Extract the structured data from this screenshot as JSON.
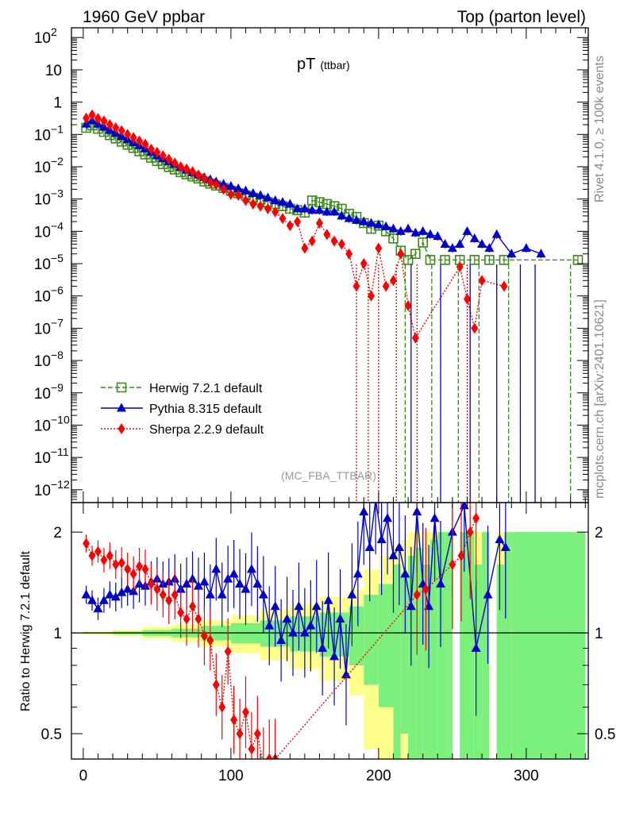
{
  "header": {
    "left": "1960 GeV ppbar",
    "right": "Top (parton level)"
  },
  "side_labels": {
    "rivet": "Rivet 4.1.0, ≥ 100k events",
    "mcplots": "mcplots.cern.ch [arXiv:2401.10621]"
  },
  "chart_data": [
    {
      "type": "line",
      "panel": "main",
      "title": "pT",
      "title_sub": "(ttbar)",
      "analysis_label": "(MC_FBA_TTBAR)",
      "yscale": "log",
      "xlim": [
        -8,
        342
      ],
      "ylim": [
        4e-13,
        200
      ],
      "xticks": [
        0,
        100,
        200,
        300
      ],
      "yticks": [
        {
          "v": 1e-12,
          "base": "10",
          "exp": "−12"
        },
        {
          "v": 1e-11,
          "base": "10",
          "exp": "−11"
        },
        {
          "v": 1e-10,
          "base": "10",
          "exp": "−10"
        },
        {
          "v": 1e-09,
          "base": "10",
          "exp": "−9"
        },
        {
          "v": 1e-08,
          "base": "10",
          "exp": "−8"
        },
        {
          "v": 1e-07,
          "base": "10",
          "exp": "−7"
        },
        {
          "v": 1e-06,
          "base": "10",
          "exp": "−6"
        },
        {
          "v": 1e-05,
          "base": "10",
          "exp": "−5"
        },
        {
          "v": 0.0001,
          "base": "10",
          "exp": "−4"
        },
        {
          "v": 0.001,
          "base": "10",
          "exp": "−3"
        },
        {
          "v": 0.01,
          "base": "10",
          "exp": "−2"
        },
        {
          "v": 0.1,
          "base": "10",
          "exp": "−1"
        },
        {
          "v": 1,
          "base": "1",
          "exp": ""
        },
        {
          "v": 10,
          "base": "10",
          "exp": ""
        },
        {
          "v": 100,
          "base": "10",
          "exp": "2"
        }
      ],
      "series": [
        {
          "name": "Herwig 7.2.1 default",
          "color": "#3a8a1a",
          "marker": "open-square",
          "dash": "6,3",
          "x": [
            2,
            6,
            10,
            14,
            18,
            22,
            26,
            30,
            34,
            38,
            42,
            46,
            50,
            54,
            58,
            62,
            66,
            70,
            74,
            78,
            82,
            86,
            90,
            95,
            100,
            105,
            110,
            115,
            120,
            125,
            130,
            135,
            140,
            145,
            150,
            155,
            160,
            165,
            170,
            175,
            180,
            185,
            190,
            195,
            200,
            205,
            210,
            215,
            220,
            225,
            230,
            235,
            245,
            255,
            265,
            275,
            285,
            335
          ],
          "y": [
            0.16,
            0.19,
            0.15,
            0.12,
            0.095,
            0.075,
            0.06,
            0.048,
            0.038,
            0.03,
            0.024,
            0.019,
            0.015,
            0.012,
            0.0098,
            0.0082,
            0.0068,
            0.0058,
            0.005,
            0.0043,
            0.0035,
            0.003,
            0.0026,
            0.0022,
            0.0018,
            0.0015,
            0.0013,
            0.0011,
            0.00095,
            0.0008,
            0.0007,
            0.0006,
            0.0005,
            0.00045,
            0.00038,
            0.0009,
            0.0008,
            0.0007,
            0.0006,
            0.0005,
            0.00035,
            0.00028,
            0.00018,
            0.00012,
            0.00015,
            0.0001,
            6e-05,
            2.5e-05,
            1.3e-05,
            2e-05,
            4.5e-05,
            1.3e-05,
            1.3e-05,
            1.3e-05,
            1.3e-05,
            1.3e-05,
            1.3e-05,
            1.3e-05
          ]
        },
        {
          "name": "Pythia 8.315 default",
          "color": "#0000cc",
          "marker": "filled-triangle",
          "dash": "",
          "x": [
            2,
            6,
            10,
            14,
            18,
            22,
            26,
            30,
            34,
            38,
            42,
            46,
            50,
            54,
            58,
            62,
            66,
            70,
            74,
            78,
            82,
            86,
            90,
            95,
            100,
            105,
            110,
            115,
            120,
            125,
            130,
            135,
            140,
            145,
            150,
            155,
            160,
            165,
            170,
            175,
            180,
            185,
            190,
            195,
            200,
            205,
            210,
            215,
            220,
            225,
            230,
            235,
            240,
            245,
            250,
            255,
            260,
            265,
            270,
            275,
            280,
            290,
            300,
            310
          ],
          "y": [
            0.21,
            0.27,
            0.21,
            0.17,
            0.135,
            0.11,
            0.088,
            0.07,
            0.056,
            0.045,
            0.036,
            0.028,
            0.022,
            0.018,
            0.0145,
            0.012,
            0.0098,
            0.008,
            0.0066,
            0.0056,
            0.0047,
            0.004,
            0.0034,
            0.0029,
            0.0025,
            0.0021,
            0.0018,
            0.0015,
            0.0013,
            0.0011,
            0.0009,
            0.0008,
            0.0007,
            0.0005,
            0.0005,
            0.00045,
            0.00045,
            0.0004,
            0.0004,
            0.0003,
            0.00025,
            0.00022,
            0.0002,
            0.00018,
            0.00016,
            0.00014,
            0.00012,
            0.0001,
            0.00012,
            9e-05,
            0.0001,
            8e-05,
            7e-05,
            4e-05,
            3e-05,
            4e-05,
            0.0001,
            6e-05,
            4e-05,
            3e-05,
            8e-05,
            2e-05,
            3e-05,
            2e-05
          ]
        },
        {
          "name": "Sherpa 2.2.9 default",
          "color": "#ff0000",
          "marker": "filled-diamond",
          "dash": "2,2",
          "x": [
            2,
            6,
            10,
            14,
            18,
            22,
            26,
            30,
            34,
            38,
            42,
            46,
            50,
            54,
            58,
            62,
            66,
            70,
            74,
            78,
            82,
            86,
            90,
            95,
            100,
            105,
            110,
            115,
            120,
            125,
            130,
            135,
            140,
            145,
            150,
            155,
            160,
            165,
            170,
            175,
            180,
            185,
            190,
            195,
            200,
            205,
            210,
            215,
            220,
            225,
            255,
            260,
            265,
            270,
            285
          ],
          "y": [
            0.32,
            0.4,
            0.31,
            0.26,
            0.2,
            0.16,
            0.13,
            0.1,
            0.08,
            0.063,
            0.05,
            0.035,
            0.028,
            0.022,
            0.017,
            0.013,
            0.01,
            0.0085,
            0.007,
            0.0055,
            0.0043,
            0.0033,
            0.0028,
            0.002,
            0.0014,
            0.0013,
            0.0009,
            0.0007,
            0.0006,
            0.0005,
            0.0004,
            0.00025,
            0.00015,
            0.0002,
            3e-05,
            5e-05,
            0.00018,
            8e-05,
            5e-05,
            4e-05,
            2e-05,
            2e-06,
            1e-05,
            1e-06,
            3e-05,
            2e-06,
            3e-06,
            2e-05,
            5e-07,
            5e-08,
            8e-06,
            8e-07,
            1e-07,
            3e-06,
            2e-06
          ]
        }
      ]
    },
    {
      "type": "line",
      "panel": "ratio",
      "ylabel": "Ratio to Herwig 7.2.1 default",
      "yscale": "log",
      "xlim": [
        -8,
        342
      ],
      "ylim": [
        0.42,
        2.45
      ],
      "xticks": [
        0,
        100,
        200,
        300
      ],
      "yticks": [
        0.5,
        1,
        2
      ],
      "reference": 1,
      "band_inner_color": "#7cf07c",
      "band_outer_color": "#ffff8a",
      "band": {
        "x": [
          0,
          20,
          40,
          60,
          80,
          100,
          120,
          140,
          160,
          180,
          190,
          200,
          210,
          215,
          220,
          225,
          230,
          235,
          240,
          245,
          250,
          255,
          260,
          265,
          270,
          275,
          280,
          285,
          290,
          335
        ],
        "inner": [
          0.005,
          0.01,
          0.02,
          0.03,
          0.05,
          0.07,
          0.09,
          0.12,
          0.15,
          0.2,
          0.3,
          0.4,
          0.6,
          0.5,
          0.7,
          0.8,
          0.6,
          0.9,
          1.0,
          1.0,
          0.0,
          1.0,
          1.0,
          0.6,
          1.0,
          0.0,
          0.6,
          1.0,
          1.0,
          1.0
        ],
        "outer": [
          0.01,
          0.02,
          0.04,
          0.06,
          0.09,
          0.13,
          0.17,
          0.22,
          0.28,
          0.35,
          0.55,
          0.7,
          0.8,
          0.9,
          1.0,
          1.0,
          1.0,
          1.0,
          1.0,
          1.0,
          0.0,
          1.0,
          1.0,
          1.0,
          1.0,
          0.0,
          1.0,
          1.0,
          1.0,
          1.0
        ]
      },
      "series": [
        {
          "name": "Pythia 8.315 default",
          "color": "#0000cc",
          "marker": "filled-triangle",
          "dash": "",
          "x": [
            2,
            6,
            10,
            14,
            18,
            22,
            26,
            30,
            34,
            38,
            42,
            46,
            50,
            54,
            58,
            62,
            66,
            70,
            74,
            78,
            82,
            86,
            90,
            94,
            98,
            102,
            106,
            110,
            114,
            118,
            122,
            126,
            130,
            134,
            138,
            142,
            146,
            150,
            154,
            158,
            162,
            166,
            170,
            174,
            178,
            182,
            186,
            190,
            194,
            198,
            202,
            206,
            210,
            214,
            218,
            222,
            226,
            230,
            234,
            238,
            242,
            250,
            258,
            266,
            274,
            282,
            286
          ],
          "y": [
            1.3,
            1.25,
            1.18,
            1.25,
            1.3,
            1.28,
            1.32,
            1.35,
            1.33,
            1.4,
            1.38,
            1.42,
            1.45,
            1.4,
            1.42,
            1.45,
            1.35,
            1.4,
            1.45,
            1.38,
            1.42,
            1.3,
            1.55,
            1.3,
            1.45,
            1.5,
            1.4,
            1.35,
            1.55,
            1.4,
            1.3,
            1.05,
            1.2,
            0.95,
            1.1,
            1.0,
            1.2,
            1.0,
            1.05,
            1.2,
            0.9,
            1.25,
            0.85,
            1.1,
            0.75,
            1.3,
            1.5,
            2.3,
            1.8,
            2.5,
            1.9,
            2.2,
            1.7,
            1.8,
            1.5,
            1.2,
            2.3,
            1.4,
            1.2,
            2.2,
            1.4,
            2.0,
            2.4,
            0.9,
            1.3,
            1.9,
            1.8
          ]
        },
        {
          "name": "Sherpa 2.2.9 default",
          "color": "#ff0000",
          "marker": "filled-diamond",
          "dash": "2,2",
          "x": [
            2,
            6,
            10,
            14,
            18,
            22,
            26,
            30,
            34,
            38,
            42,
            46,
            50,
            54,
            58,
            62,
            66,
            70,
            74,
            78,
            82,
            86,
            90,
            94,
            98,
            102,
            106,
            110,
            114,
            118,
            122,
            126,
            130,
            226,
            232,
            250,
            256,
            262,
            266
          ],
          "y": [
            1.85,
            1.7,
            1.75,
            1.65,
            1.7,
            1.6,
            1.62,
            1.55,
            1.5,
            1.58,
            1.55,
            1.4,
            1.35,
            1.3,
            1.25,
            1.3,
            1.15,
            1.1,
            1.2,
            1.1,
            0.98,
            0.95,
            0.7,
            0.6,
            0.88,
            0.55,
            0.5,
            0.58,
            0.45,
            0.5,
            0.4,
            0.42,
            0.42,
            1.3,
            1.35,
            1.6,
            1.7,
            2.0,
            2.2
          ]
        }
      ]
    }
  ]
}
